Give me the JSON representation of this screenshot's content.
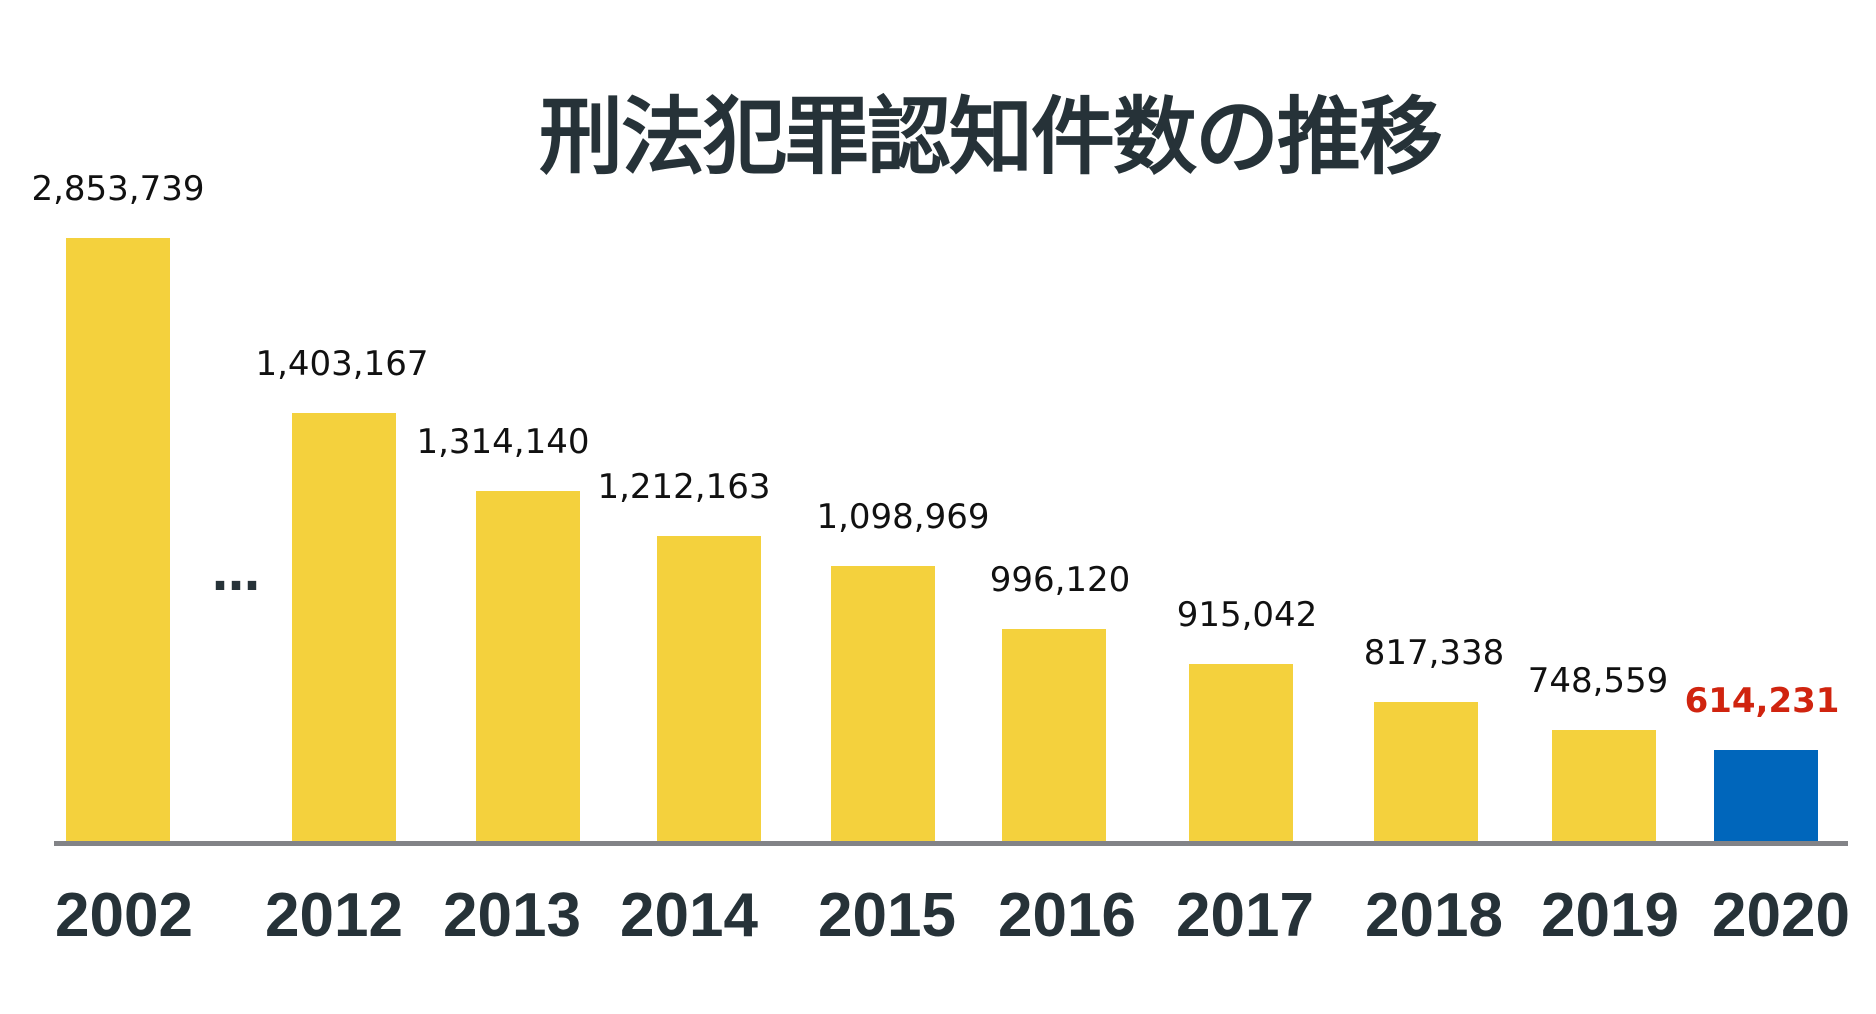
{
  "chart_data": {
    "type": "bar",
    "title": "刑法犯罪認知件数の推移",
    "categories": [
      "2002",
      "2012",
      "2013",
      "2014",
      "2015",
      "2016",
      "2017",
      "2018",
      "2019",
      "2020"
    ],
    "values": [
      2853739,
      1403167,
      1314140,
      1212163,
      1098969,
      996120,
      915042,
      817338,
      748559,
      614231
    ],
    "value_labels": [
      "2,853,739",
      "1,403,167",
      "1,314,140",
      "1,212,163",
      "1,098,969",
      "996,120",
      "915,042",
      "817,338",
      "748,559",
      "614,231"
    ],
    "axis_break_marker": "…",
    "xlabel": "",
    "ylabel": "",
    "grid": false,
    "highlight_index": 9,
    "colors": {
      "bar": "#f4d13d",
      "highlight_bar": "#0066bb",
      "highlight_label": "#d0240f",
      "axis": "#828387",
      "text": "#263238"
    }
  }
}
